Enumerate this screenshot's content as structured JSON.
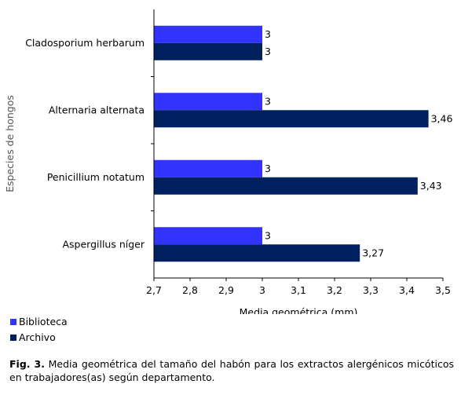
{
  "chart_data": {
    "type": "bar",
    "orientation": "horizontal",
    "categories": [
      "Cladosporium herbarum",
      "Alternaria alternata",
      "Penicillium notatum",
      "Aspergillus níger"
    ],
    "series": [
      {
        "name": "Biblioteca",
        "color": "#3333ff",
        "values": [
          3,
          3,
          3,
          3
        ],
        "labels": [
          "3",
          "3",
          "3",
          "3"
        ]
      },
      {
        "name": "Archivo",
        "color": "#002060",
        "values": [
          3,
          3.46,
          3.43,
          3.27
        ],
        "labels": [
          "3",
          "3,46",
          "3,43",
          "3,27"
        ]
      }
    ],
    "xlabel": "Media geométrica (mm)",
    "ylabel": "Especies de hongos",
    "xlim": [
      2.7,
      3.5
    ],
    "xticks": [
      {
        "value": 2.7,
        "label": "2,7"
      },
      {
        "value": 2.8,
        "label": "2,8"
      },
      {
        "value": 2.9,
        "label": "2,9"
      },
      {
        "value": 3.0,
        "label": "3"
      },
      {
        "value": 3.1,
        "label": "3,1"
      },
      {
        "value": 3.2,
        "label": "3,2"
      },
      {
        "value": 3.3,
        "label": "3,3"
      },
      {
        "value": 3.4,
        "label": "3,4"
      },
      {
        "value": 3.5,
        "label": "3,5"
      }
    ],
    "grid": false,
    "legend_position": "bottom-left"
  },
  "legend": [
    {
      "label": "Biblioteca",
      "color": "#3333ff"
    },
    {
      "label": "Archivo",
      "color": "#002060"
    }
  ],
  "caption": {
    "prefix": "Fig. 3.",
    "text": " Media geométrica del tamaño del habón para los extractos alergénicos micóticos en trabajadores(as) según departamento."
  }
}
